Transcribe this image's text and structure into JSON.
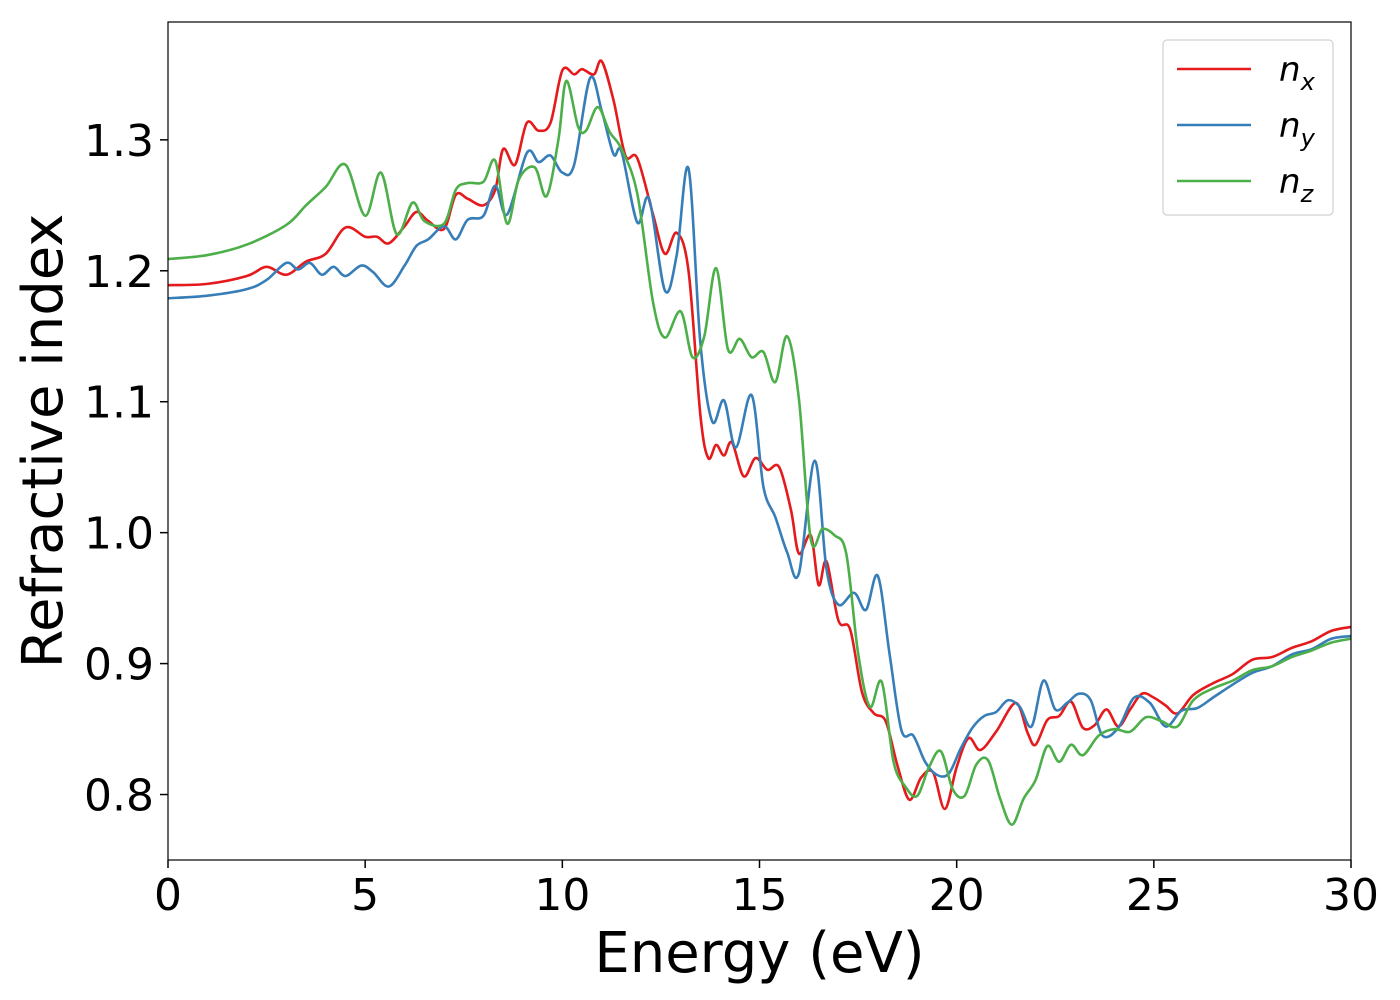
{
  "chart_data": {
    "type": "line",
    "title": "",
    "xlabel": "Energy (eV)",
    "ylabel": "Refractive index",
    "xlim": [
      0,
      30
    ],
    "ylim": [
      0.75,
      1.39
    ],
    "xticks": [
      0,
      5,
      10,
      15,
      20,
      25,
      30
    ],
    "xtick_labels": [
      "0",
      "5",
      "10",
      "15",
      "20",
      "25",
      "30"
    ],
    "yticks": [
      0.8,
      0.9,
      1.0,
      1.1,
      1.2,
      1.3
    ],
    "ytick_labels": [
      "0.8",
      "0.9",
      "1.0",
      "1.1",
      "1.2",
      "1.3"
    ],
    "grid": false,
    "legend_position": "top-right",
    "series": [
      {
        "name": "n",
        "subscript": "x",
        "color": "#e41a1c",
        "points": [
          [
            0,
            1.189
          ],
          [
            1,
            1.19
          ],
          [
            2,
            1.196
          ],
          [
            2.5,
            1.203
          ],
          [
            3,
            1.197
          ],
          [
            3.5,
            1.207
          ],
          [
            4,
            1.213
          ],
          [
            4.5,
            1.233
          ],
          [
            5,
            1.226
          ],
          [
            5.3,
            1.226
          ],
          [
            5.6,
            1.221
          ],
          [
            6,
            1.234
          ],
          [
            6.3,
            1.245
          ],
          [
            6.6,
            1.238
          ],
          [
            7,
            1.232
          ],
          [
            7.3,
            1.258
          ],
          [
            7.6,
            1.255
          ],
          [
            8,
            1.25
          ],
          [
            8.3,
            1.262
          ],
          [
            8.5,
            1.293
          ],
          [
            8.8,
            1.281
          ],
          [
            9.1,
            1.313
          ],
          [
            9.4,
            1.307
          ],
          [
            9.7,
            1.313
          ],
          [
            10,
            1.353
          ],
          [
            10.3,
            1.35
          ],
          [
            10.5,
            1.354
          ],
          [
            10.8,
            1.35
          ],
          [
            11,
            1.36
          ],
          [
            11.3,
            1.33
          ],
          [
            11.6,
            1.288
          ],
          [
            11.9,
            1.286
          ],
          [
            12.3,
            1.243
          ],
          [
            12.6,
            1.213
          ],
          [
            12.9,
            1.229
          ],
          [
            13.2,
            1.2
          ],
          [
            13.5,
            1.09
          ],
          [
            13.7,
            1.057
          ],
          [
            13.9,
            1.067
          ],
          [
            14.1,
            1.059
          ],
          [
            14.3,
            1.069
          ],
          [
            14.6,
            1.043
          ],
          [
            14.9,
            1.057
          ],
          [
            15.2,
            1.048
          ],
          [
            15.5,
            1.05
          ],
          [
            15.8,
            1.017
          ],
          [
            16,
            0.984
          ],
          [
            16.3,
            0.998
          ],
          [
            16.5,
            0.96
          ],
          [
            16.7,
            0.978
          ],
          [
            17,
            0.933
          ],
          [
            17.3,
            0.926
          ],
          [
            17.6,
            0.878
          ],
          [
            17.9,
            0.862
          ],
          [
            18.2,
            0.856
          ],
          [
            18.5,
            0.822
          ],
          [
            18.8,
            0.796
          ],
          [
            19.1,
            0.813
          ],
          [
            19.4,
            0.817
          ],
          [
            19.7,
            0.789
          ],
          [
            20,
            0.821
          ],
          [
            20.3,
            0.843
          ],
          [
            20.6,
            0.834
          ],
          [
            21,
            0.848
          ],
          [
            21.5,
            0.87
          ],
          [
            21.8,
            0.847
          ],
          [
            22,
            0.838
          ],
          [
            22.3,
            0.857
          ],
          [
            22.6,
            0.86
          ],
          [
            22.9,
            0.871
          ],
          [
            23.2,
            0.851
          ],
          [
            23.5,
            0.853
          ],
          [
            23.8,
            0.865
          ],
          [
            24.1,
            0.852
          ],
          [
            24.4,
            0.865
          ],
          [
            24.7,
            0.877
          ],
          [
            25,
            0.874
          ],
          [
            25.3,
            0.868
          ],
          [
            25.6,
            0.862
          ],
          [
            26,
            0.876
          ],
          [
            26.5,
            0.885
          ],
          [
            27,
            0.892
          ],
          [
            27.5,
            0.903
          ],
          [
            28,
            0.905
          ],
          [
            28.5,
            0.912
          ],
          [
            29,
            0.917
          ],
          [
            29.5,
            0.925
          ],
          [
            30,
            0.928
          ]
        ]
      },
      {
        "name": "n",
        "subscript": "y",
        "color": "#377eb8",
        "points": [
          [
            0,
            1.179
          ],
          [
            1,
            1.181
          ],
          [
            2,
            1.186
          ],
          [
            2.5,
            1.193
          ],
          [
            3,
            1.206
          ],
          [
            3.3,
            1.201
          ],
          [
            3.6,
            1.206
          ],
          [
            3.9,
            1.197
          ],
          [
            4.2,
            1.203
          ],
          [
            4.5,
            1.196
          ],
          [
            4.9,
            1.204
          ],
          [
            5.2,
            1.199
          ],
          [
            5.6,
            1.188
          ],
          [
            6,
            1.204
          ],
          [
            6.3,
            1.219
          ],
          [
            6.6,
            1.224
          ],
          [
            7,
            1.234
          ],
          [
            7.3,
            1.224
          ],
          [
            7.6,
            1.239
          ],
          [
            8,
            1.242
          ],
          [
            8.3,
            1.265
          ],
          [
            8.6,
            1.243
          ],
          [
            9.1,
            1.29
          ],
          [
            9.4,
            1.283
          ],
          [
            9.7,
            1.288
          ],
          [
            10,
            1.275
          ],
          [
            10.3,
            1.281
          ],
          [
            10.7,
            1.347
          ],
          [
            11,
            1.322
          ],
          [
            11.3,
            1.289
          ],
          [
            11.5,
            1.291
          ],
          [
            11.9,
            1.237
          ],
          [
            12.2,
            1.255
          ],
          [
            12.6,
            1.185
          ],
          [
            12.9,
            1.212
          ],
          [
            13.2,
            1.278
          ],
          [
            13.5,
            1.145
          ],
          [
            13.8,
            1.085
          ],
          [
            14.1,
            1.101
          ],
          [
            14.4,
            1.065
          ],
          [
            14.8,
            1.105
          ],
          [
            15.1,
            1.035
          ],
          [
            15.4,
            1.012
          ],
          [
            15.7,
            0.985
          ],
          [
            16,
            0.969
          ],
          [
            16.4,
            1.055
          ],
          [
            16.7,
            0.972
          ],
          [
            17,
            0.945
          ],
          [
            17.4,
            0.954
          ],
          [
            17.7,
            0.941
          ],
          [
            18,
            0.967
          ],
          [
            18.3,
            0.907
          ],
          [
            18.6,
            0.849
          ],
          [
            18.9,
            0.845
          ],
          [
            19.2,
            0.825
          ],
          [
            19.5,
            0.815
          ],
          [
            19.8,
            0.816
          ],
          [
            20.1,
            0.835
          ],
          [
            20.4,
            0.851
          ],
          [
            20.7,
            0.86
          ],
          [
            21,
            0.863
          ],
          [
            21.3,
            0.872
          ],
          [
            21.6,
            0.867
          ],
          [
            21.9,
            0.852
          ],
          [
            22.2,
            0.887
          ],
          [
            22.5,
            0.865
          ],
          [
            22.8,
            0.87
          ],
          [
            23.1,
            0.877
          ],
          [
            23.4,
            0.872
          ],
          [
            23.7,
            0.845
          ],
          [
            24.1,
            0.851
          ],
          [
            24.5,
            0.874
          ],
          [
            24.9,
            0.87
          ],
          [
            25.3,
            0.852
          ],
          [
            25.7,
            0.864
          ],
          [
            26.1,
            0.866
          ],
          [
            26.5,
            0.874
          ],
          [
            27,
            0.884
          ],
          [
            27.5,
            0.893
          ],
          [
            28,
            0.898
          ],
          [
            28.5,
            0.907
          ],
          [
            29,
            0.911
          ],
          [
            29.5,
            0.919
          ],
          [
            30,
            0.921
          ]
        ]
      },
      {
        "name": "n",
        "subscript": "z",
        "color": "#4daf4a",
        "points": [
          [
            0,
            1.209
          ],
          [
            1,
            1.212
          ],
          [
            2,
            1.22
          ],
          [
            3,
            1.235
          ],
          [
            3.5,
            1.25
          ],
          [
            4,
            1.264
          ],
          [
            4.5,
            1.281
          ],
          [
            5,
            1.242
          ],
          [
            5.4,
            1.275
          ],
          [
            5.8,
            1.228
          ],
          [
            6.2,
            1.252
          ],
          [
            6.5,
            1.238
          ],
          [
            7,
            1.236
          ],
          [
            7.3,
            1.262
          ],
          [
            7.6,
            1.267
          ],
          [
            8,
            1.268
          ],
          [
            8.3,
            1.284
          ],
          [
            8.6,
            1.236
          ],
          [
            8.9,
            1.27
          ],
          [
            9.3,
            1.279
          ],
          [
            9.6,
            1.257
          ],
          [
            9.9,
            1.3
          ],
          [
            10.1,
            1.345
          ],
          [
            10.4,
            1.31
          ],
          [
            10.6,
            1.307
          ],
          [
            10.9,
            1.325
          ],
          [
            11.2,
            1.306
          ],
          [
            11.5,
            1.293
          ],
          [
            11.9,
            1.259
          ],
          [
            12.3,
            1.176
          ],
          [
            12.6,
            1.149
          ],
          [
            13,
            1.169
          ],
          [
            13.3,
            1.134
          ],
          [
            13.6,
            1.15
          ],
          [
            13.9,
            1.202
          ],
          [
            14.2,
            1.14
          ],
          [
            14.5,
            1.148
          ],
          [
            14.8,
            1.134
          ],
          [
            15.1,
            1.138
          ],
          [
            15.4,
            1.115
          ],
          [
            15.7,
            1.15
          ],
          [
            16,
            1.102
          ],
          [
            16.3,
            0.995
          ],
          [
            16.6,
            1.003
          ],
          [
            16.9,
            0.998
          ],
          [
            17.2,
            0.984
          ],
          [
            17.5,
            0.908
          ],
          [
            17.8,
            0.867
          ],
          [
            18.1,
            0.886
          ],
          [
            18.4,
            0.825
          ],
          [
            18.7,
            0.806
          ],
          [
            19,
            0.799
          ],
          [
            19.3,
            0.821
          ],
          [
            19.6,
            0.833
          ],
          [
            19.9,
            0.804
          ],
          [
            20.2,
            0.799
          ],
          [
            20.5,
            0.823
          ],
          [
            20.8,
            0.826
          ],
          [
            21.1,
            0.797
          ],
          [
            21.4,
            0.777
          ],
          [
            21.7,
            0.797
          ],
          [
            22,
            0.811
          ],
          [
            22.3,
            0.837
          ],
          [
            22.6,
            0.825
          ],
          [
            22.9,
            0.838
          ],
          [
            23.2,
            0.83
          ],
          [
            23.6,
            0.845
          ],
          [
            24,
            0.85
          ],
          [
            24.4,
            0.848
          ],
          [
            24.8,
            0.859
          ],
          [
            25.2,
            0.856
          ],
          [
            25.6,
            0.852
          ],
          [
            26,
            0.872
          ],
          [
            26.5,
            0.881
          ],
          [
            27,
            0.887
          ],
          [
            27.5,
            0.895
          ],
          [
            28,
            0.898
          ],
          [
            28.5,
            0.905
          ],
          [
            29,
            0.91
          ],
          [
            29.5,
            0.916
          ],
          [
            30,
            0.919
          ]
        ]
      }
    ]
  }
}
